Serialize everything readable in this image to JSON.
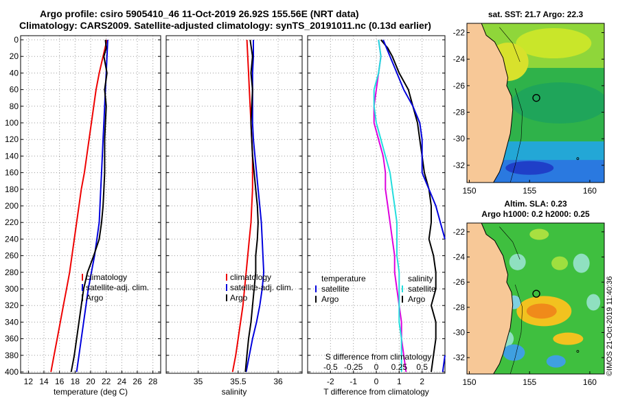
{
  "header": {
    "line1": "Argo profile: csiro 5905410_46 11-Oct-2019 26.92S 155.56E (NRT data)",
    "line2": "Climatology: CARS2009. Satellite-adjusted climatology: synTS_20191011.nc (0.13d earlier)"
  },
  "stamp": "©IMOS 21-Oct-2019 11:40:36",
  "colors": {
    "climatology": "#ee0000",
    "satellite": "#0000dd",
    "argo": "#000000",
    "temperature_diff": "#dd00dd",
    "salinity_diff": "#22dddd",
    "land": "#f7c897",
    "grid": "#999999"
  },
  "chart_data": [
    {
      "type": "line",
      "id": "temperature",
      "xlabel": "temperature (deg C)",
      "ylabel": "depth",
      "xlim": [
        11,
        29
      ],
      "ylim": [
        0,
        400
      ],
      "xticks": [
        12,
        14,
        16,
        18,
        20,
        22,
        24,
        26,
        28
      ],
      "yticks": [
        0,
        20,
        40,
        60,
        80,
        100,
        120,
        140,
        160,
        180,
        200,
        220,
        240,
        260,
        280,
        300,
        320,
        340,
        360,
        380,
        400
      ],
      "legend": [
        "climatology",
        "satellite-adj. clim.",
        "Argo"
      ],
      "series": [
        {
          "name": "climatology",
          "points": [
            [
              22.1,
              0
            ],
            [
              21.6,
              20
            ],
            [
              21.1,
              40
            ],
            [
              20.7,
              60
            ],
            [
              20.4,
              80
            ],
            [
              20.1,
              100
            ],
            [
              19.8,
              120
            ],
            [
              19.5,
              140
            ],
            [
              19.2,
              160
            ],
            [
              18.8,
              180
            ],
            [
              18.5,
              200
            ],
            [
              18.2,
              220
            ],
            [
              17.9,
              240
            ],
            [
              17.6,
              260
            ],
            [
              17.3,
              280
            ],
            [
              16.9,
              300
            ],
            [
              16.5,
              320
            ],
            [
              16.1,
              340
            ],
            [
              15.7,
              360
            ],
            [
              15.3,
              380
            ],
            [
              14.9,
              400
            ]
          ]
        },
        {
          "name": "satellite-adj. clim.",
          "points": [
            [
              22.2,
              0
            ],
            [
              22.1,
              20
            ],
            [
              22.0,
              40
            ],
            [
              21.9,
              60
            ],
            [
              21.8,
              80
            ],
            [
              21.7,
              100
            ],
            [
              21.6,
              120
            ],
            [
              21.5,
              140
            ],
            [
              21.4,
              160
            ],
            [
              21.3,
              180
            ],
            [
              21.2,
              200
            ],
            [
              21.1,
              220
            ],
            [
              20.8,
              240
            ],
            [
              20.5,
              260
            ],
            [
              20.1,
              280
            ],
            [
              19.7,
              300
            ],
            [
              19.4,
              320
            ],
            [
              19.1,
              340
            ],
            [
              18.8,
              360
            ],
            [
              18.5,
              380
            ],
            [
              18.2,
              400
            ]
          ]
        },
        {
          "name": "Argo",
          "points": [
            [
              21.9,
              0
            ],
            [
              22.0,
              10
            ],
            [
              21.7,
              20
            ],
            [
              22.1,
              40
            ],
            [
              21.8,
              60
            ],
            [
              22.0,
              80
            ],
            [
              21.9,
              100
            ],
            [
              21.8,
              120
            ],
            [
              21.8,
              140
            ],
            [
              21.8,
              160
            ],
            [
              21.7,
              180
            ],
            [
              21.6,
              200
            ],
            [
              21.4,
              220
            ],
            [
              21.1,
              240
            ],
            [
              20.4,
              260
            ],
            [
              19.6,
              280
            ],
            [
              19.1,
              300
            ],
            [
              18.8,
              320
            ],
            [
              18.5,
              340
            ],
            [
              18.2,
              360
            ],
            [
              17.9,
              380
            ],
            [
              17.5,
              400
            ]
          ]
        }
      ]
    },
    {
      "type": "line",
      "id": "salinity",
      "xlabel": "salinity",
      "ylabel": "depth",
      "xlim": [
        34.6,
        36.3
      ],
      "ylim": [
        0,
        400
      ],
      "xticks": [
        35,
        35.5,
        36
      ],
      "yticks": [
        0,
        20,
        40,
        60,
        80,
        100,
        120,
        140,
        160,
        180,
        200,
        220,
        240,
        260,
        280,
        300,
        320,
        340,
        360,
        380,
        400
      ],
      "legend": [
        "climatology",
        "satellite-adj. clim.",
        "Argo"
      ],
      "series": [
        {
          "name": "climatology",
          "points": [
            [
              35.61,
              0
            ],
            [
              35.62,
              20
            ],
            [
              35.63,
              40
            ],
            [
              35.64,
              60
            ],
            [
              35.65,
              80
            ],
            [
              35.66,
              100
            ],
            [
              35.67,
              120
            ],
            [
              35.68,
              140
            ],
            [
              35.68,
              160
            ],
            [
              35.68,
              180
            ],
            [
              35.67,
              200
            ],
            [
              35.66,
              220
            ],
            [
              35.64,
              240
            ],
            [
              35.62,
              260
            ],
            [
              35.6,
              280
            ],
            [
              35.58,
              300
            ],
            [
              35.56,
              320
            ],
            [
              35.53,
              340
            ],
            [
              35.5,
              360
            ],
            [
              35.47,
              380
            ],
            [
              35.43,
              400
            ]
          ]
        },
        {
          "name": "satellite-adj. clim.",
          "points": [
            [
              35.69,
              0
            ],
            [
              35.69,
              20
            ],
            [
              35.68,
              40
            ],
            [
              35.68,
              60
            ],
            [
              35.68,
              80
            ],
            [
              35.68,
              100
            ],
            [
              35.69,
              120
            ],
            [
              35.71,
              140
            ],
            [
              35.73,
              160
            ],
            [
              35.75,
              180
            ],
            [
              35.77,
              200
            ],
            [
              35.79,
              220
            ],
            [
              35.8,
              240
            ],
            [
              35.81,
              260
            ],
            [
              35.82,
              280
            ],
            [
              35.8,
              300
            ],
            [
              35.77,
              320
            ],
            [
              35.73,
              340
            ],
            [
              35.68,
              360
            ],
            [
              35.64,
              380
            ],
            [
              35.6,
              400
            ]
          ]
        },
        {
          "name": "Argo",
          "points": [
            [
              35.65,
              0
            ],
            [
              35.68,
              20
            ],
            [
              35.66,
              40
            ],
            [
              35.68,
              60
            ],
            [
              35.67,
              80
            ],
            [
              35.66,
              100
            ],
            [
              35.67,
              120
            ],
            [
              35.68,
              140
            ],
            [
              35.7,
              160
            ],
            [
              35.72,
              180
            ],
            [
              35.74,
              200
            ],
            [
              35.75,
              220
            ],
            [
              35.74,
              240
            ],
            [
              35.72,
              260
            ],
            [
              35.72,
              280
            ],
            [
              35.7,
              300
            ],
            [
              35.68,
              320
            ],
            [
              35.66,
              340
            ],
            [
              35.63,
              360
            ],
            [
              35.61,
              380
            ],
            [
              35.59,
              400
            ]
          ]
        }
      ]
    },
    {
      "type": "line",
      "id": "difference",
      "xlabel": "T difference from climatology",
      "xlabel_top": "S difference from climatology",
      "ylabel": "depth",
      "xlim": [
        -3,
        3
      ],
      "ylim": [
        0,
        400
      ],
      "xticks": [
        -2,
        -1,
        0,
        1,
        2
      ],
      "xticks_top": [
        -0.5,
        -0.25,
        0,
        0.25,
        0.5
      ],
      "s_scale_factor": 4,
      "yticks": [
        0,
        20,
        40,
        60,
        80,
        100,
        120,
        140,
        160,
        180,
        200,
        220,
        240,
        260,
        280,
        300,
        320,
        340,
        360,
        380,
        400
      ],
      "legend_t": {
        "heading": "temperature",
        "items": [
          "satellite",
          "Argo"
        ]
      },
      "legend_s": {
        "heading": "salinity",
        "items": [
          "satellite",
          "Argo"
        ]
      },
      "series": [
        {
          "name": "temperature satellite",
          "color_key": "temperature_diff",
          "points": [
            [
              0.1,
              0
            ],
            [
              0.2,
              20
            ],
            [
              0.1,
              40
            ],
            [
              0,
              60
            ],
            [
              -0.1,
              80
            ],
            [
              -0.1,
              100
            ],
            [
              0.1,
              120
            ],
            [
              0.3,
              140
            ],
            [
              0.4,
              160
            ],
            [
              0.4,
              180
            ],
            [
              0.5,
              200
            ],
            [
              0.6,
              220
            ],
            [
              0.7,
              240
            ],
            [
              0.8,
              260
            ],
            [
              0.8,
              280
            ],
            [
              0.9,
              300
            ],
            [
              1.0,
              320
            ],
            [
              1.1,
              340
            ],
            [
              1.1,
              360
            ],
            [
              1.2,
              380
            ],
            [
              1.3,
              400
            ]
          ]
        },
        {
          "name": "salinity satellite",
          "color_key": "salinity_diff",
          "points": [
            [
              0.1,
              0
            ],
            [
              0.2,
              20
            ],
            [
              0.1,
              40
            ],
            [
              -0.1,
              60
            ],
            [
              -0.1,
              80
            ],
            [
              0,
              100
            ],
            [
              0.2,
              120
            ],
            [
              0.4,
              140
            ],
            [
              0.6,
              160
            ],
            [
              0.7,
              180
            ],
            [
              0.8,
              200
            ],
            [
              0.9,
              220
            ],
            [
              0.9,
              240
            ],
            [
              0.9,
              260
            ],
            [
              1.0,
              280
            ],
            [
              1.0,
              300
            ],
            [
              1.0,
              320
            ],
            [
              1.0,
              340
            ],
            [
              1.1,
              360
            ],
            [
              1.1,
              380
            ],
            [
              1.1,
              400
            ]
          ]
        },
        {
          "name": "temperature Argo",
          "color_key": "argo",
          "points": [
            [
              0.2,
              0
            ],
            [
              0.5,
              10
            ],
            [
              0.7,
              20
            ],
            [
              1.0,
              40
            ],
            [
              1.4,
              60
            ],
            [
              1.6,
              80
            ],
            [
              1.8,
              100
            ],
            [
              1.9,
              120
            ],
            [
              2.0,
              140
            ],
            [
              2.1,
              160
            ],
            [
              2.3,
              180
            ],
            [
              2.4,
              200
            ],
            [
              2.4,
              220
            ],
            [
              2.3,
              240
            ],
            [
              2.5,
              260
            ],
            [
              2.6,
              280
            ],
            [
              2.6,
              300
            ],
            [
              2.4,
              320
            ],
            [
              2.6,
              340
            ],
            [
              2.6,
              360
            ],
            [
              2.5,
              380
            ],
            [
              2.4,
              400
            ]
          ]
        },
        {
          "name": "salinity Argo",
          "color_key": "satellite",
          "points": [
            [
              0.3,
              0
            ],
            [
              0.6,
              20
            ],
            [
              0.9,
              40
            ],
            [
              1.2,
              60
            ],
            [
              1.6,
              80
            ],
            [
              1.9,
              100
            ],
            [
              2.0,
              120
            ],
            [
              2.0,
              140
            ],
            [
              2.0,
              160
            ],
            [
              2.3,
              180
            ],
            [
              2.6,
              200
            ],
            [
              2.8,
              220
            ],
            [
              3.0,
              240
            ]
          ]
        },
        {
          "name": "salinity Argo deep",
          "color_key": "satellite",
          "points": [
            [
              3.0,
              380
            ],
            [
              2.9,
              400
            ]
          ]
        }
      ]
    },
    {
      "type": "heatmap",
      "id": "sst-map",
      "title": "sat. SST: 21.7 Argo: 22.3",
      "xlim": [
        149.8,
        161.2
      ],
      "ylim": [
        -33.3,
        -21.3
      ],
      "xticks": [
        150,
        155,
        160
      ],
      "yticks": [
        -22,
        -24,
        -26,
        -28,
        -30,
        -32
      ],
      "marker": [
        155.56,
        -26.92
      ]
    },
    {
      "type": "heatmap",
      "id": "sla-map",
      "title": "Altim. SLA: 0.23",
      "subtitle": "Argo h1000: 0.2 h2000: 0.25",
      "xlim": [
        149.8,
        161.2
      ],
      "ylim": [
        -33.3,
        -21.3
      ],
      "xticks": [
        150,
        155,
        160
      ],
      "yticks": [
        -22,
        -24,
        -26,
        -28,
        -30,
        -32
      ],
      "marker": [
        155.56,
        -26.92
      ]
    }
  ]
}
